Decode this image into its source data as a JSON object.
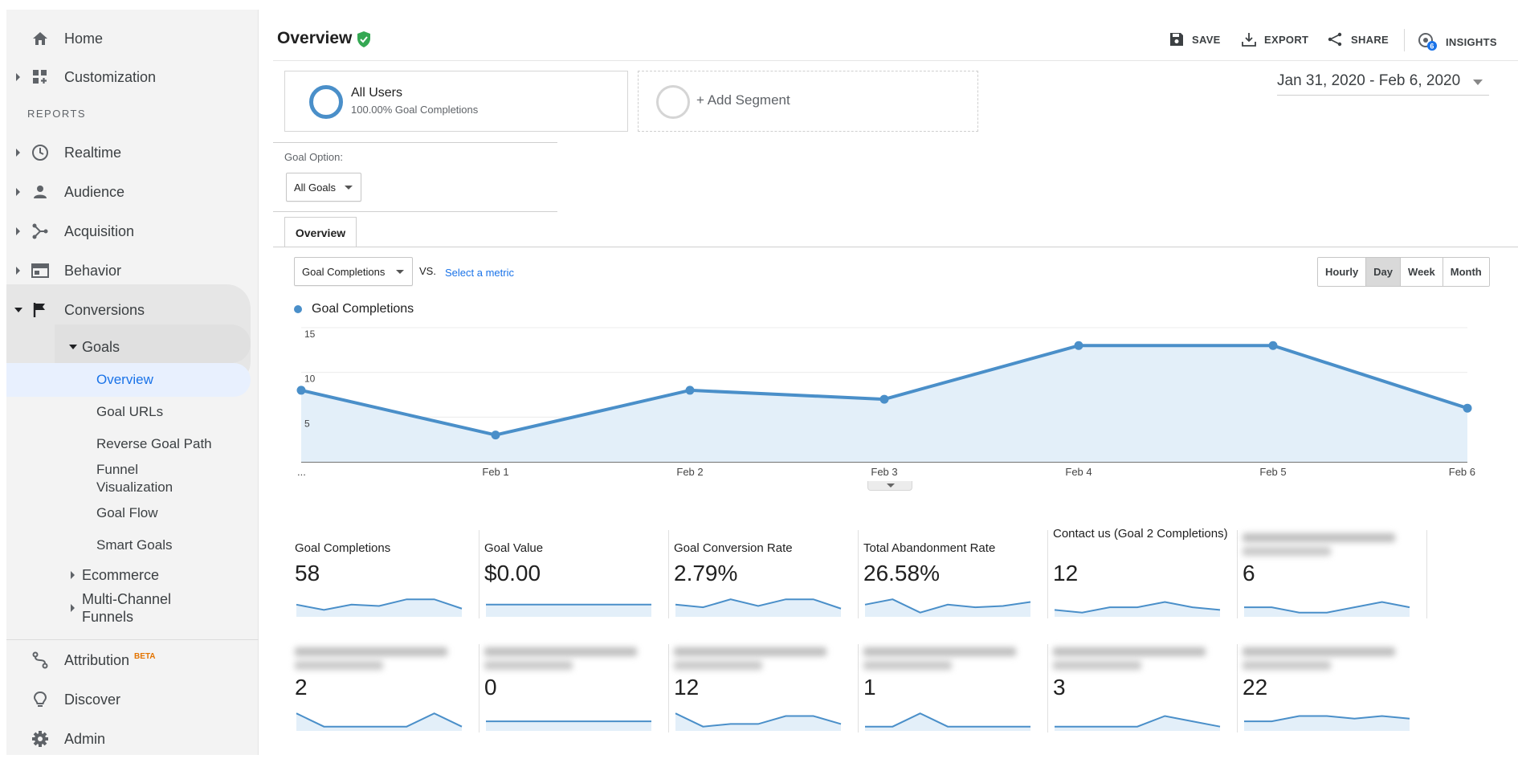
{
  "sidebar": {
    "home": "Home",
    "customization": "Customization",
    "reports_label": "REPORTS",
    "realtime": "Realtime",
    "audience": "Audience",
    "acquisition": "Acquisition",
    "behavior": "Behavior",
    "conversions": "Conversions",
    "goals": "Goals",
    "goal_items": [
      "Overview",
      "Goal URLs",
      "Reverse Goal Path",
      "Funnel Visualization",
      "Goal Flow",
      "Smart Goals"
    ],
    "ecommerce": "Ecommerce",
    "multichannel": "Multi-Channel Funnels",
    "attribution": "Attribution",
    "beta": "BETA",
    "discover": "Discover",
    "admin": "Admin"
  },
  "header": {
    "title": "Overview",
    "save": "SAVE",
    "export": "EXPORT",
    "share": "SHARE",
    "insights": "INSIGHTS",
    "insights_badge": "6"
  },
  "segments": {
    "all_users": "All Users",
    "all_users_sub": "100.00% Goal Completions",
    "add": "+ Add Segment"
  },
  "date_range": "Jan 31, 2020 - Feb 6, 2020",
  "goal_option": {
    "label": "Goal Option:",
    "value": "All Goals"
  },
  "tab": "Overview",
  "metric": {
    "selected": "Goal Completions",
    "vs": "VS.",
    "select": "Select a metric"
  },
  "granularity": {
    "options": [
      "Hourly",
      "Day",
      "Week",
      "Month"
    ],
    "active": "Day"
  },
  "colors": {
    "accent": "#4a8fc9",
    "fill": "#e3eff9",
    "link": "#1a73e8"
  },
  "chart_data": {
    "type": "area",
    "series": [
      {
        "name": "Goal Completions",
        "values": [
          8,
          3,
          8,
          7,
          13,
          13,
          6
        ]
      }
    ],
    "x": [
      "...",
      "Feb 1",
      "Feb 2",
      "Feb 3",
      "Feb 4",
      "Feb 5",
      "Feb 6"
    ],
    "y_ticks": [
      5,
      10,
      15
    ],
    "ylim": [
      0,
      15
    ],
    "legend": "top-left",
    "grid": true
  },
  "scorecards": [
    {
      "label": "Goal Completions",
      "value": "58",
      "blurred": false,
      "spark": [
        4,
        2,
        4,
        3.5,
        6,
        6,
        2.5
      ]
    },
    {
      "label": "Goal Value",
      "value": "$0.00",
      "blurred": false,
      "spark": [
        4,
        4,
        4,
        4,
        4,
        4,
        4
      ]
    },
    {
      "label": "Goal Conversion Rate",
      "value": "2.79%",
      "blurred": false,
      "spark": [
        4,
        3,
        6,
        3.5,
        6,
        6,
        2.5
      ]
    },
    {
      "label": "Total Abandonment Rate",
      "value": "26.58%",
      "blurred": false,
      "spark": [
        4,
        6,
        1,
        4,
        3,
        3.5,
        5
      ]
    },
    {
      "label": "Contact us (Goal 2 Completions)",
      "value": "12",
      "blurred": false,
      "spark": [
        2,
        1,
        3,
        3,
        5,
        3,
        2
      ]
    },
    {
      "label": "",
      "value": "6",
      "blurred": true,
      "spark": [
        3,
        3,
        1,
        1,
        3,
        5,
        3
      ]
    },
    {
      "label": "",
      "value": "2",
      "blurred": true,
      "spark": [
        6,
        1,
        1,
        1,
        1,
        6,
        1
      ]
    },
    {
      "label": "",
      "value": "0",
      "blurred": true,
      "spark": [
        3,
        3,
        3,
        3,
        3,
        3,
        3
      ]
    },
    {
      "label": "",
      "value": "12",
      "blurred": true,
      "spark": [
        6,
        1,
        2,
        2,
        5,
        5,
        2
      ]
    },
    {
      "label": "",
      "value": "1",
      "blurred": true,
      "spark": [
        1,
        1,
        6,
        1,
        1,
        1,
        1
      ]
    },
    {
      "label": "",
      "value": "3",
      "blurred": true,
      "spark": [
        1,
        1,
        1,
        1,
        5,
        3,
        1
      ]
    },
    {
      "label": "",
      "value": "22",
      "blurred": true,
      "spark": [
        3,
        3,
        5,
        5,
        4,
        5,
        4
      ]
    }
  ]
}
